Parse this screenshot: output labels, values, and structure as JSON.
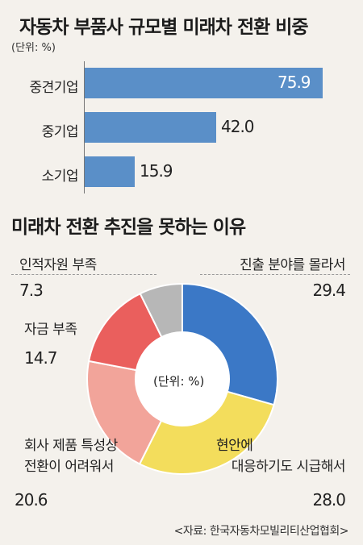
{
  "chart_data": [
    {
      "type": "bar",
      "title": "자동차 부품사 규모별 미래차 전환 비중",
      "unit_note": "(단위: %)",
      "categories": [
        "중견기업",
        "중기업",
        "소기업"
      ],
      "values": [
        75.9,
        42.0,
        15.9
      ],
      "value_labels": [
        "75.9",
        "42.0",
        "15.9"
      ],
      "xlim": [
        0,
        80
      ],
      "color": "#5a8fc8"
    },
    {
      "type": "pie",
      "title": "미래차 전환 추진을 못하는 이유",
      "center_note": "(단위: %)",
      "slices": [
        {
          "label_lines": [
            "진출 분야를 몰라서"
          ],
          "value": 29.4,
          "value_label": "29.4",
          "color": "#3b78c6"
        },
        {
          "label_lines": [
            "현안에",
            "대응하기도 시급해서"
          ],
          "value": 28.0,
          "value_label": "28.0",
          "color": "#f3dd5c"
        },
        {
          "label_lines": [
            "회사 제품 특성상",
            "전환이 어려워서"
          ],
          "value": 20.6,
          "value_label": "20.6",
          "color": "#f2a49a"
        },
        {
          "label_lines": [
            "자금 부족"
          ],
          "value": 14.7,
          "value_label": "14.7",
          "color": "#ea5f5d"
        },
        {
          "label_lines": [
            "인적자원 부족"
          ],
          "value": 7.3,
          "value_label": "7.3",
          "color": "#b7b7b7"
        }
      ]
    }
  ],
  "source": "<자료: 한국자동차모빌리티산업협회>"
}
